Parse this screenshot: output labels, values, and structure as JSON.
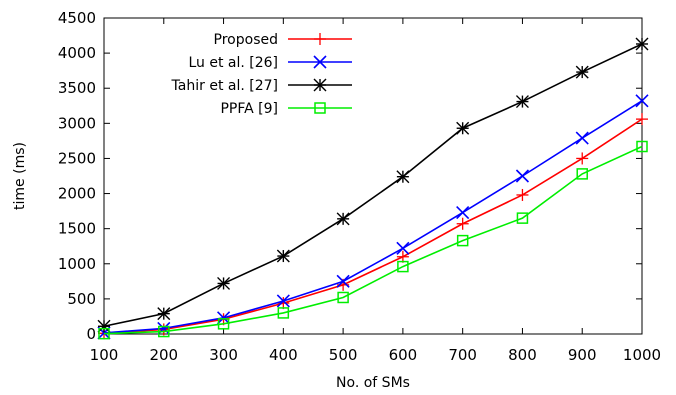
{
  "chart_data": {
    "type": "line",
    "xlabel": "No. of SMs",
    "ylabel": "time (ms)",
    "xlim": [
      100,
      1000
    ],
    "ylim": [
      0,
      4500
    ],
    "x_ticks": [
      100,
      200,
      300,
      400,
      500,
      600,
      700,
      800,
      900,
      1000
    ],
    "y_ticks": [
      0,
      500,
      1000,
      1500,
      2000,
      2500,
      3000,
      3500,
      4000,
      4500
    ],
    "grid": false,
    "legend_position": "top-left",
    "x": [
      100,
      200,
      300,
      400,
      500,
      600,
      700,
      800,
      900,
      1000
    ],
    "series": [
      {
        "name": "Proposed",
        "color": "#ff0000",
        "marker": "plus",
        "values": [
          10,
          65,
          210,
          440,
          700,
          1100,
          1570,
          1980,
          2500,
          3060
        ]
      },
      {
        "name": "Lu et al. [26]",
        "color": "#0000ff",
        "marker": "x",
        "values": [
          15,
          80,
          230,
          470,
          750,
          1220,
          1730,
          2250,
          2790,
          3320
        ]
      },
      {
        "name": "Tahir et al. [27]",
        "color": "#000000",
        "marker": "star",
        "values": [
          110,
          290,
          720,
          1110,
          1640,
          2240,
          2930,
          3310,
          3730,
          4130
        ]
      },
      {
        "name": "PPFA [9]",
        "color": "#00ee00",
        "marker": "square",
        "values": [
          5,
          35,
          145,
          300,
          520,
          960,
          1330,
          1650,
          2280,
          2670
        ]
      }
    ]
  }
}
